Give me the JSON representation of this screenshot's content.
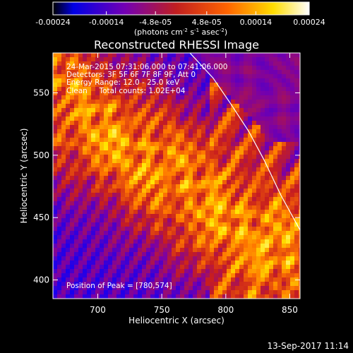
{
  "chart_data": {
    "type": "heatmap",
    "title": "Reconstructed RHESSI Image",
    "xlabel": "Heliocentric X (arcsec)",
    "ylabel": "Heliocentric Y (arcsec)",
    "xlim": [
      665,
      858
    ],
    "ylim": [
      385,
      582
    ],
    "x_ticks": [
      "700",
      "750",
      "800",
      "850"
    ],
    "x_tick_values": [
      700,
      750,
      800,
      850
    ],
    "y_ticks": [
      "400",
      "450",
      "500",
      "550"
    ],
    "y_tick_values": [
      400,
      450,
      500,
      550
    ],
    "colorbar": {
      "ticks": [
        "-0.00024",
        "-0.00014",
        "-4.8e-05",
        "4.8e-05",
        "0.00014",
        "0.00024"
      ],
      "tick_values": [
        -0.00024,
        -0.00014,
        -4.8e-05,
        4.8e-05,
        0.00014,
        0.00024
      ],
      "range": [
        -0.00024,
        0.00024
      ],
      "unit_label": "(photons cm",
      "unit_exp1": "-2",
      "unit_mid": " s",
      "unit_exp2": "-1",
      "unit_end": " asec",
      "unit_exp3": "-2",
      "unit_close": ")",
      "colormap": [
        "#000000",
        "#0000ff",
        "#7800aa",
        "#c81e1e",
        "#ff7800",
        "#ffe600",
        "#ffffff"
      ]
    },
    "annotations": {
      "time": "24-Mar-2015 07:31:06.000 to 07:41:06.000",
      "detectors": "Detectors: 3F 5F 6F 7F 8F 9F, Att 0",
      "energy": "Energy Range: 12.0 - 25.0 keV",
      "clean": "Clean     Total counts: 1.02E+04",
      "peak": "Position of Peak = [780,574]"
    },
    "limb_curve": {
      "x": [
        772,
        790,
        804,
        818,
        830,
        843,
        858
      ],
      "y": [
        582,
        562,
        541,
        519,
        496,
        468,
        440
      ],
      "color": "#ffffff"
    },
    "grid": false,
    "legend": "none"
  },
  "footer": {
    "date": "13-Sep-2017 11:14"
  }
}
